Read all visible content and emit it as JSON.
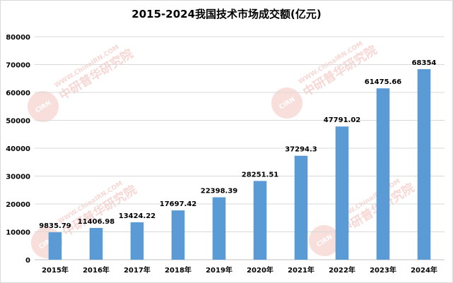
{
  "chart_data": {
    "type": "bar",
    "title": "2015-2024我国技术市场成交额(亿元)",
    "categories": [
      "2015年",
      "2016年",
      "2017年",
      "2018年",
      "2019年",
      "2020年",
      "2021年",
      "2022年",
      "2023年",
      "2024年"
    ],
    "values": [
      9835.79,
      11406.98,
      13424.22,
      17697.42,
      22398.39,
      28251.51,
      37294.3,
      47791.02,
      61475.66,
      68354
    ],
    "value_labels": [
      "9835.79",
      "11406.98",
      "13424.22",
      "17697.42",
      "22398.39",
      "28251.51",
      "37294.3",
      "47791.02",
      "61475.66",
      "68354"
    ],
    "y_ticks": [
      0,
      10000,
      20000,
      30000,
      40000,
      50000,
      60000,
      70000,
      80000
    ],
    "ylim": [
      0,
      80000
    ],
    "grid": true,
    "legend": "none",
    "bar_color": "#5b9bd5"
  },
  "watermark": {
    "brand": "中研普华研究院",
    "url": "WWW.ChinaIRN.COM",
    "logo": "CIRN"
  }
}
